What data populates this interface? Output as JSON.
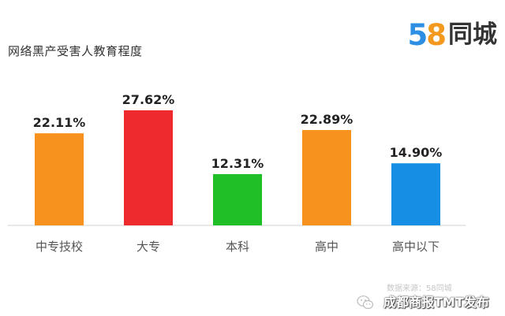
{
  "header": {
    "title": "网络黑产受害人教育程度",
    "logo_digit_5": "5",
    "logo_digit_8": "8",
    "logo_text": "同城"
  },
  "chart_data": {
    "type": "bar",
    "title": "网络黑产受害人教育程度",
    "categories": [
      "中专技校",
      "大专",
      "本科",
      "高中",
      "高中以下"
    ],
    "values": [
      22.11,
      27.62,
      12.31,
      22.89,
      14.9
    ],
    "labels": [
      "22.11%",
      "27.62%",
      "12.31%",
      "22.89%",
      "14.90%"
    ],
    "colors": [
      "#f7921e",
      "#ee2a2f",
      "#1fbf27",
      "#f7921e",
      "#168ee3"
    ],
    "ylim": [
      0,
      30
    ],
    "grid": false,
    "legend": "none",
    "xlabel": "",
    "ylabel": ""
  },
  "footer": {
    "source": "数据来源：58同城",
    "publisher": "成都商报TMT发布",
    "icon": "wechat-icon"
  }
}
